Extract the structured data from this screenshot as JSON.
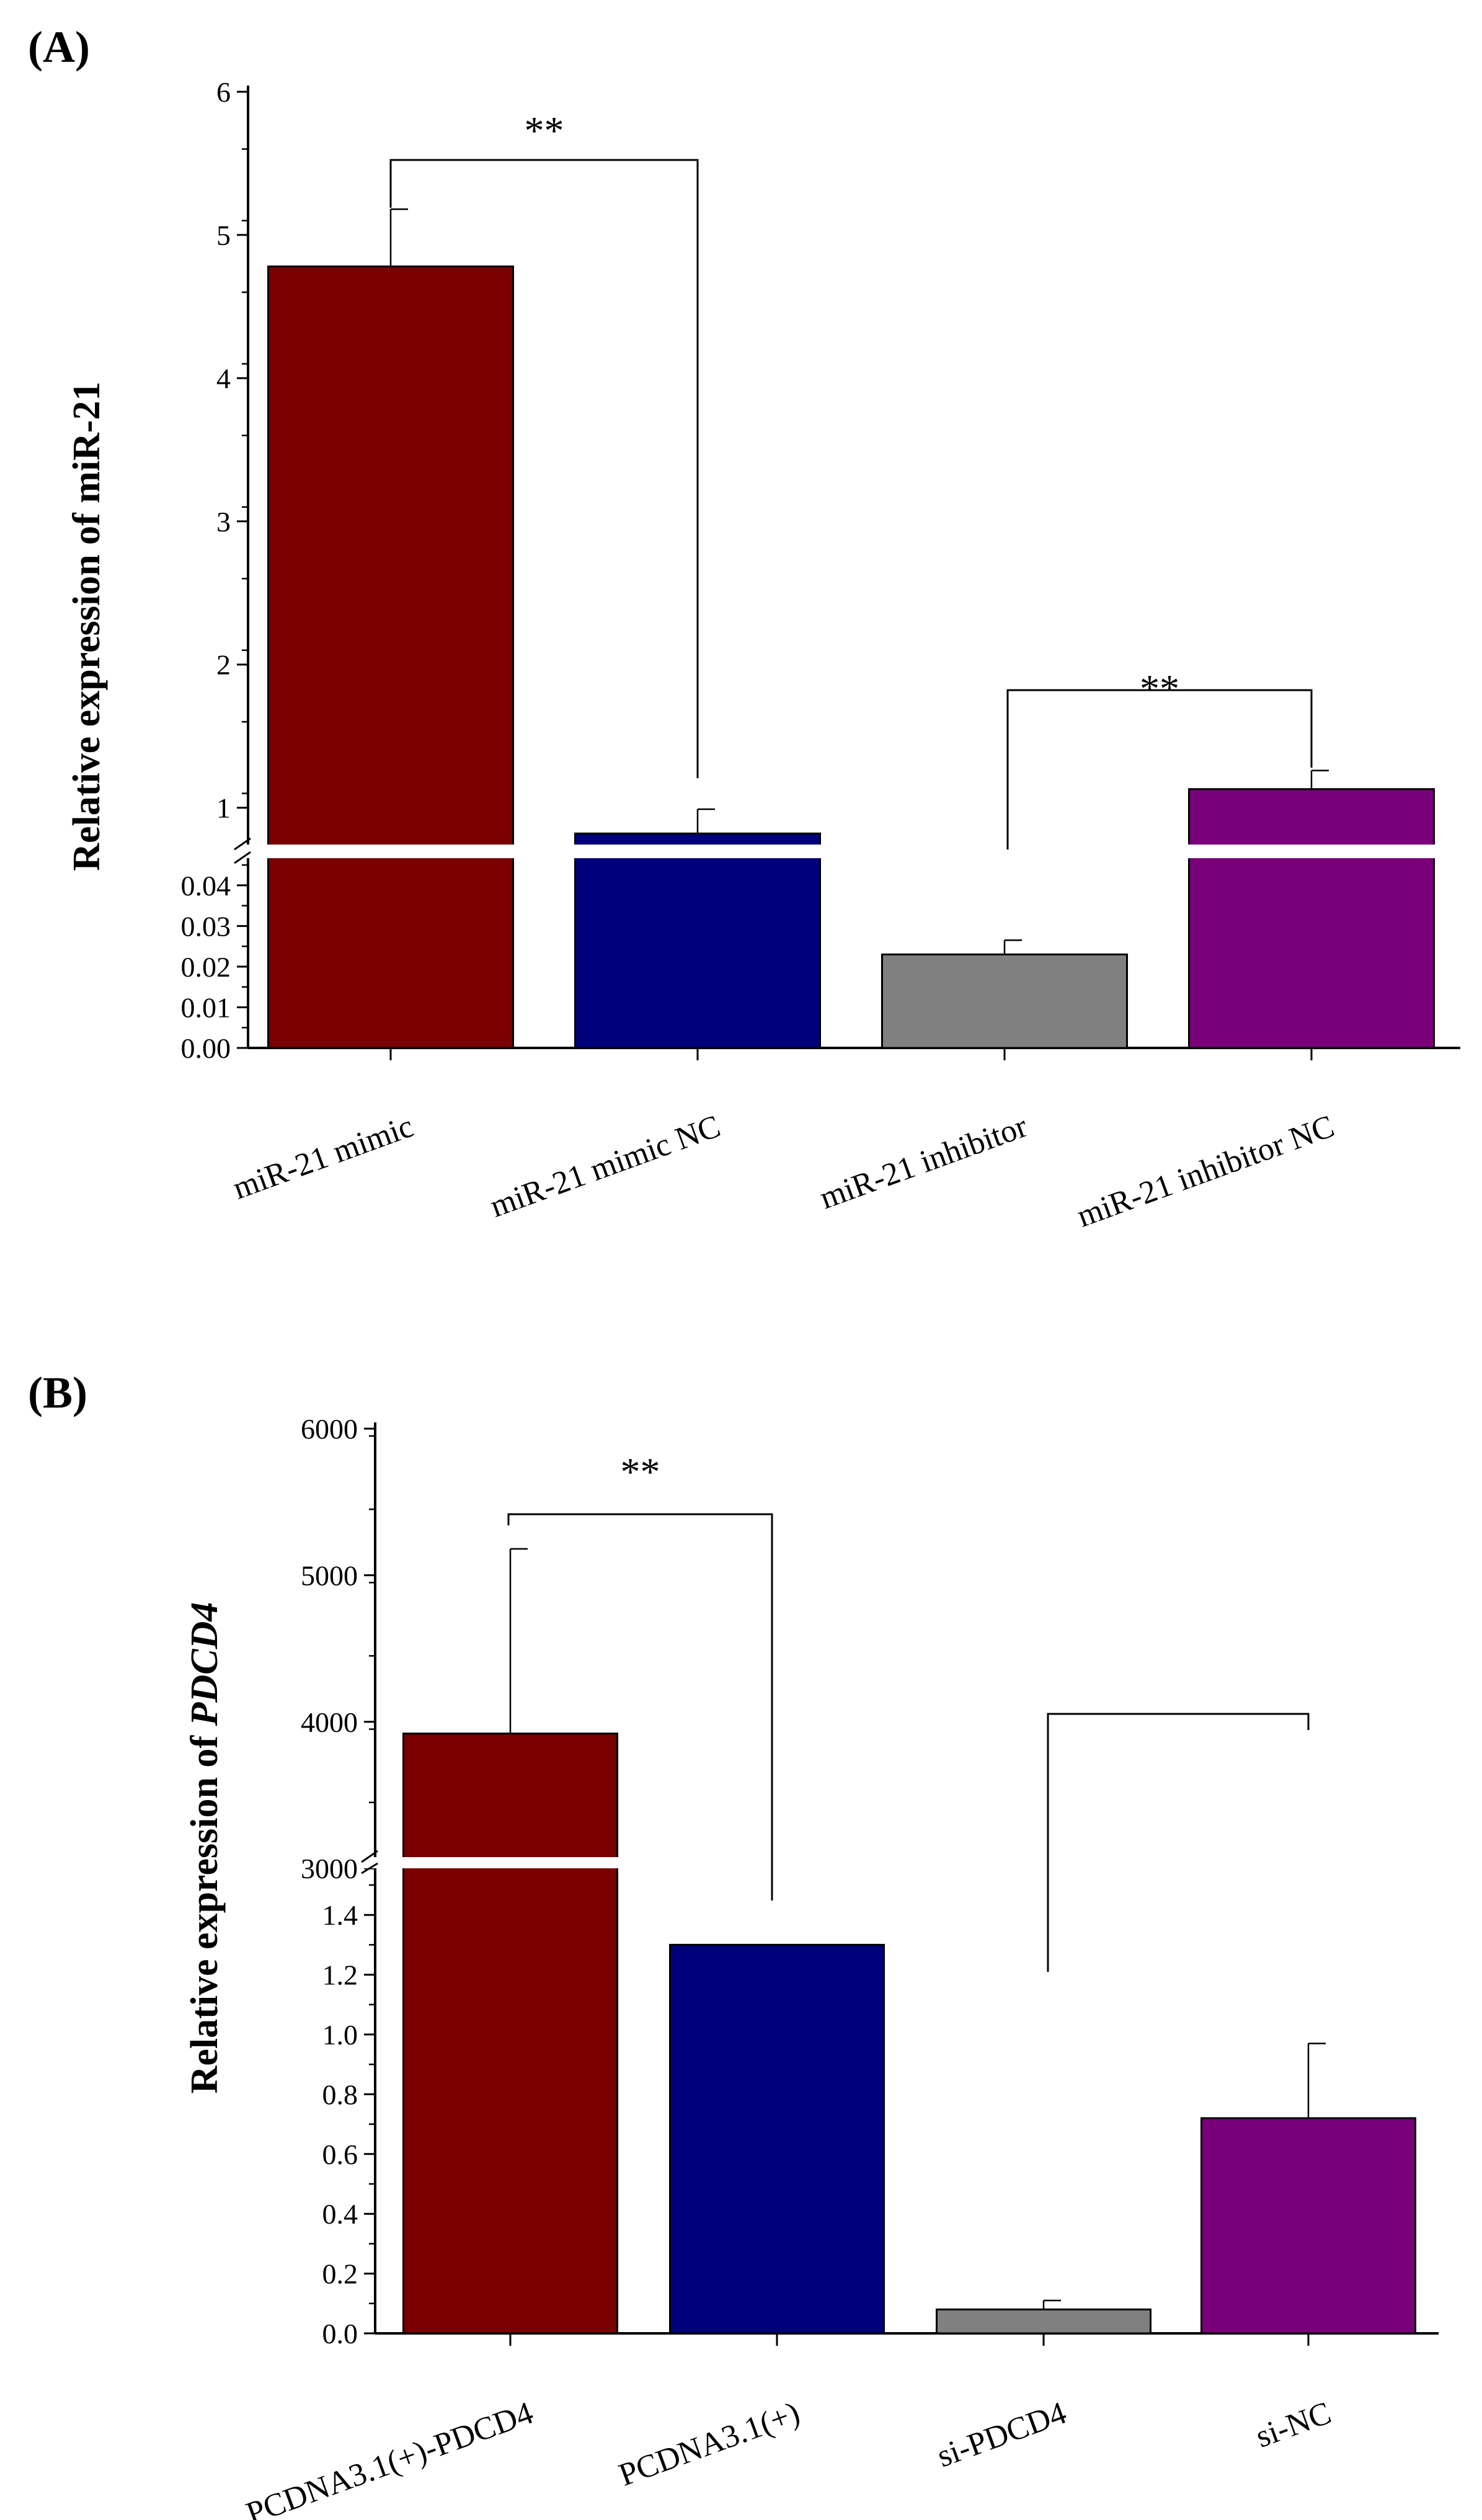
{
  "chart_data": [
    {
      "panel": "(A)",
      "type": "bar",
      "ylabel": "Relative expression of miR-21",
      "categories": [
        "miR-21 mimic",
        "miR-21 mimic NC",
        "miR-21 inhibitor",
        "miR-21 inhibitor NC"
      ],
      "values": [
        4.78,
        0.82,
        0.023,
        1.13
      ],
      "errors": [
        0.4,
        0.17,
        0.0035,
        0.13
      ],
      "colors": [
        "#7a0000",
        "#00007a",
        "#808080",
        "#7a007a"
      ],
      "axis_break": true,
      "upper_range": [
        0.6,
        6
      ],
      "lower_range": [
        0,
        0.045
      ],
      "upper_ticks": [
        "1",
        "2",
        "3",
        "4",
        "5",
        "6"
      ],
      "lower_ticks": [
        "0.00",
        "0.01",
        "0.02",
        "0.03",
        "0.04"
      ],
      "significance": [
        {
          "between": [
            0,
            1
          ],
          "label": "**"
        },
        {
          "between": [
            2,
            3
          ],
          "label": "**"
        }
      ]
    },
    {
      "panel": "(B)",
      "type": "bar",
      "ylabel_prefix": "Relative expression of ",
      "ylabel_gene": "PDCD4",
      "categories": [
        "PCDNA3.1(+)-PDCD4",
        "PCDNA3.1(+)",
        "si-PDCD4",
        "si-NC"
      ],
      "values": [
        3920,
        1.3,
        0.08,
        0.72
      ],
      "errors": [
        1260,
        0,
        0.03,
        0.25
      ],
      "colors": [
        "#7a0000",
        "#00007a",
        "#808080",
        "#7a007a"
      ],
      "axis_break": true,
      "upper_range": [
        2950,
        6000
      ],
      "lower_range": [
        0,
        1.5
      ],
      "upper_ticks": [
        "3000",
        "4000",
        "5000",
        "6000"
      ],
      "lower_ticks": [
        "0.0",
        "0.2",
        "0.4",
        "0.6",
        "0.8",
        "1.0",
        "1.2",
        "1.4"
      ],
      "significance": [
        {
          "between": [
            0,
            1
          ],
          "label": "**"
        },
        {
          "between": [
            2,
            3
          ],
          "label": ""
        }
      ]
    }
  ]
}
